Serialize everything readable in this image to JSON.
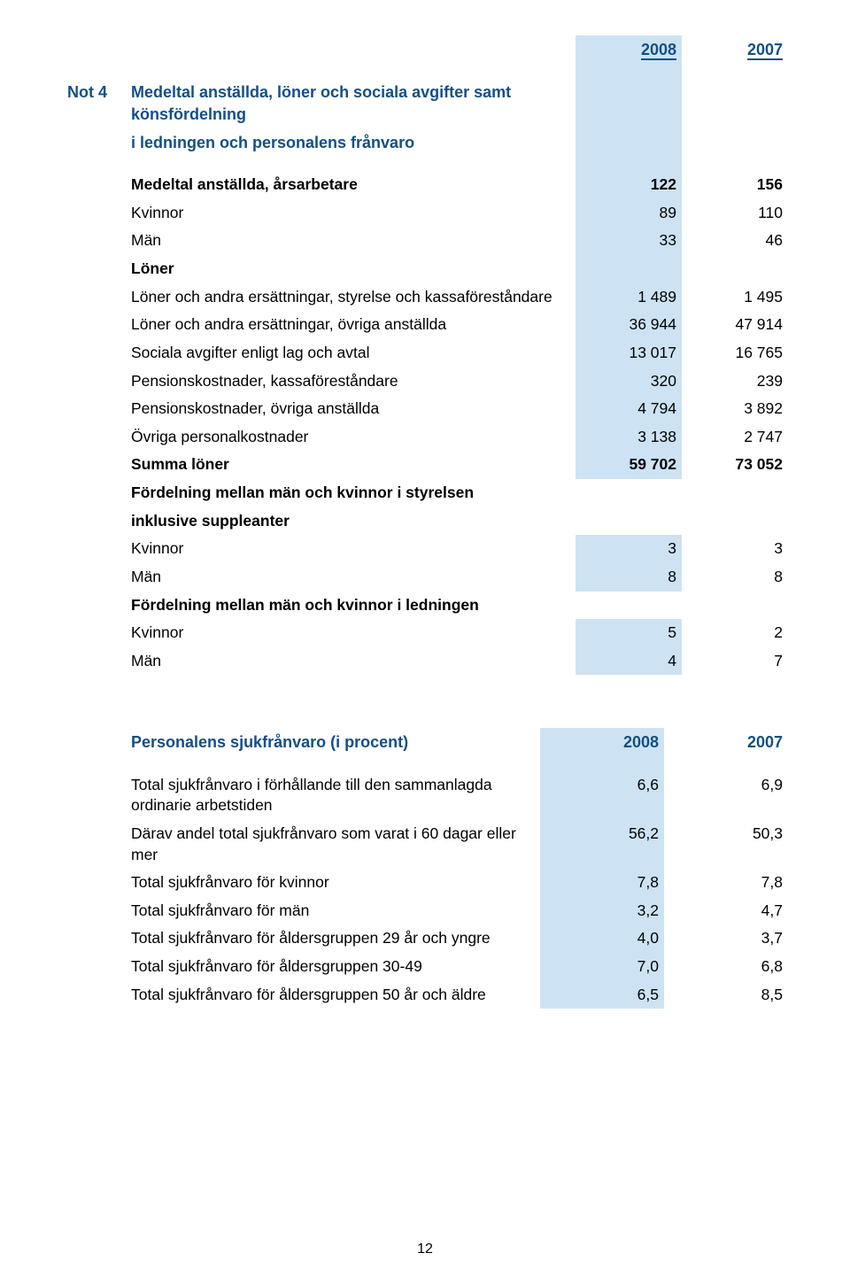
{
  "page_number": "12",
  "colors": {
    "heading": "#134f86",
    "shade": "#cde3f3",
    "background": "#ffffff",
    "text": "#000000"
  },
  "table1": {
    "header": {
      "col1": "2008",
      "col2": "2007"
    },
    "note_id": "Not 4",
    "note_title_line1": "Medeltal anställda, löner och sociala avgifter samt könsfördelning",
    "note_title_line2": "i ledningen och personalens frånvaro",
    "rows": [
      {
        "label": "Medeltal anställda, årsarbetare",
        "v1": "122",
        "v2": "156",
        "bold": true
      },
      {
        "label": "Kvinnor",
        "v1": "89",
        "v2": "110"
      },
      {
        "label": "Män",
        "v1": "33",
        "v2": "46"
      },
      {
        "label": "Löner",
        "v1": "",
        "v2": "",
        "bold": true
      },
      {
        "label": "Löner och andra ersättningar, styrelse och kassaföreståndare",
        "v1": "1 489",
        "v2": "1 495"
      },
      {
        "label": "Löner och andra ersättningar, övriga anställda",
        "v1": "36 944",
        "v2": "47 914"
      },
      {
        "label": "Sociala avgifter enligt lag och avtal",
        "v1": "13 017",
        "v2": "16 765"
      },
      {
        "label": "Pensionskostnader, kassaföreståndare",
        "v1": "320",
        "v2": "239"
      },
      {
        "label": "Pensionskostnader, övriga anställda",
        "v1": "4 794",
        "v2": "3 892"
      },
      {
        "label": "Övriga personalkostnader",
        "v1": "3 138",
        "v2": "2 747"
      },
      {
        "label": "Summa löner",
        "v1": "59 702",
        "v2": "73 052",
        "bold": true
      },
      {
        "label": "Fördelning mellan män och kvinnor i styrelsen",
        "v1": "",
        "v2": "",
        "bold": true,
        "noshade": true
      },
      {
        "label": "inklusive suppleanter",
        "v1": "",
        "v2": "",
        "bold": true,
        "noshade": true
      },
      {
        "label": "Kvinnor",
        "v1": "3",
        "v2": "3"
      },
      {
        "label": "Män",
        "v1": "8",
        "v2": "8"
      },
      {
        "label": "Fördelning mellan män och kvinnor i ledningen",
        "v1": "",
        "v2": "",
        "bold": true,
        "noshade": true
      },
      {
        "label": "Kvinnor",
        "v1": "5",
        "v2": "2"
      },
      {
        "label": "Män",
        "v1": "4",
        "v2": "7"
      }
    ]
  },
  "table2": {
    "title": "Personalens sjukfrånvaro (i procent)",
    "header": {
      "col1": "2008",
      "col2": "2007"
    },
    "rows": [
      {
        "label": "Total sjukfrånvaro i förhållande till den sammanlagda ordinarie arbetstiden",
        "v1": "6,6",
        "v2": "6,9"
      },
      {
        "label": "Därav andel total sjukfrånvaro som varat i 60 dagar eller mer",
        "v1": "56,2",
        "v2": "50,3"
      },
      {
        "label": "Total sjukfrånvaro för kvinnor",
        "v1": "7,8",
        "v2": "7,8"
      },
      {
        "label": "Total sjukfrånvaro för män",
        "v1": "3,2",
        "v2": "4,7"
      },
      {
        "label": "Total sjukfrånvaro för åldersgruppen 29 år och yngre",
        "v1": "4,0",
        "v2": "3,7"
      },
      {
        "label": "Total sjukfrånvaro för åldersgruppen 30-49",
        "v1": "7,0",
        "v2": "6,8"
      },
      {
        "label": "Total sjukfrånvaro för åldersgruppen 50 år och äldre",
        "v1": "6,5",
        "v2": "8,5"
      }
    ]
  }
}
